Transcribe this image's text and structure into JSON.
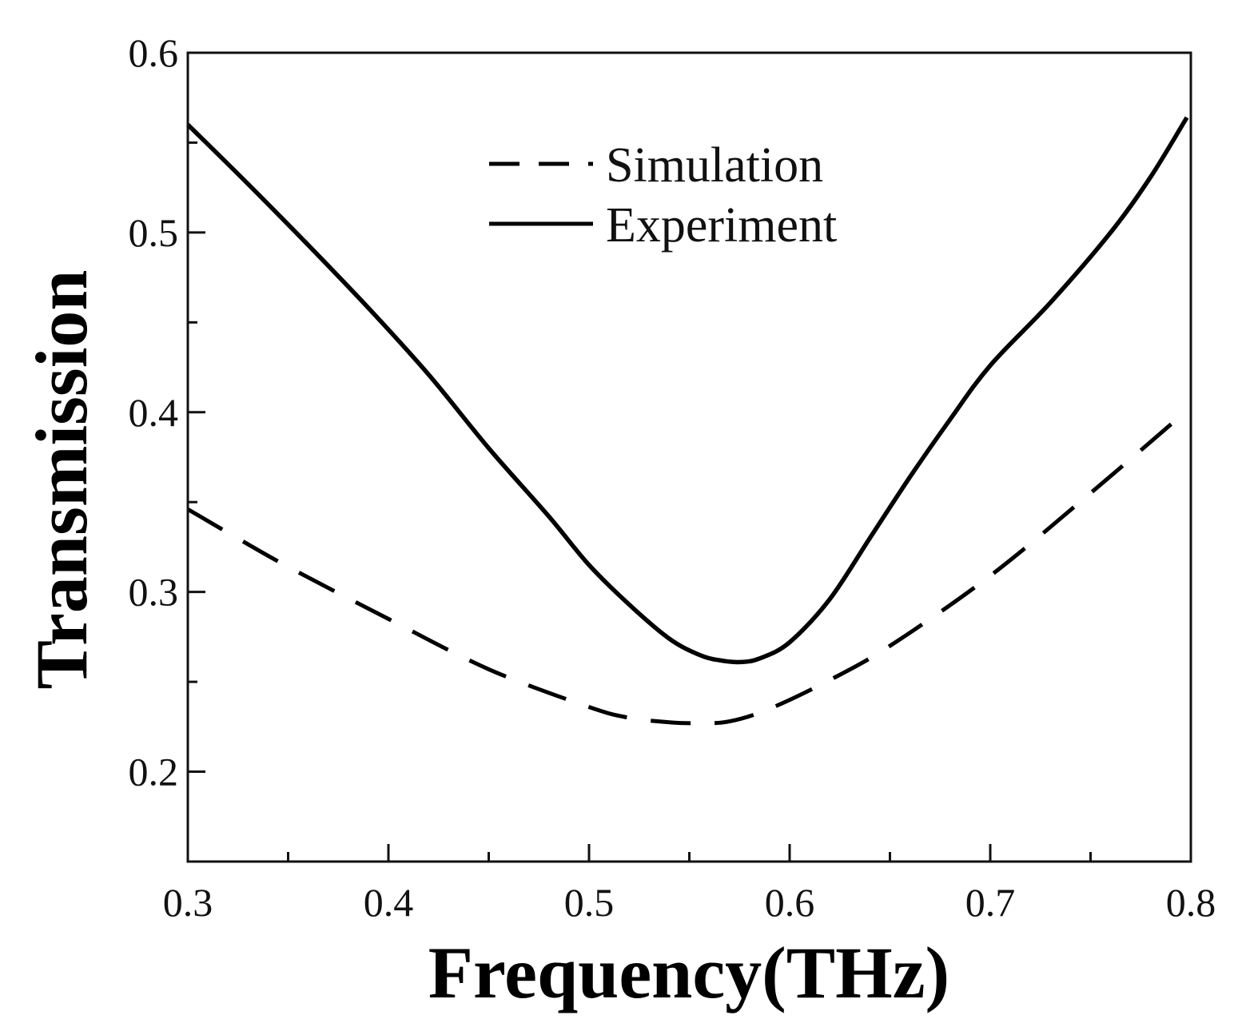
{
  "chart_data": {
    "type": "line",
    "title": "",
    "xlabel": "Frequency(THz)",
    "ylabel": "Transmission",
    "xlim": [
      0.3,
      0.8
    ],
    "ylim": [
      0.15,
      0.6
    ],
    "xticks": [
      {
        "value": 0.3,
        "label": "0.3"
      },
      {
        "value": 0.4,
        "label": "0.4"
      },
      {
        "value": 0.5,
        "label": "0.5"
      },
      {
        "value": 0.6,
        "label": "0.6"
      },
      {
        "value": 0.7,
        "label": "0.7"
      },
      {
        "value": 0.8,
        "label": "0.8"
      }
    ],
    "xminor": [
      0.35,
      0.45,
      0.55,
      0.65,
      0.75
    ],
    "yticks": [
      {
        "value": 0.2,
        "label": "0.2"
      },
      {
        "value": 0.3,
        "label": "0.3"
      },
      {
        "value": 0.4,
        "label": "0.4"
      },
      {
        "value": 0.5,
        "label": "0.5"
      },
      {
        "value": 0.6,
        "label": "0.6"
      }
    ],
    "yminor": [
      0.25,
      0.35,
      0.45,
      0.55
    ],
    "grid": false,
    "legend_position": "top-center",
    "series": [
      {
        "name": "Simulation",
        "style": "dashed",
        "color": "#000000",
        "x": [
          0.3,
          0.32,
          0.35,
          0.4,
          0.45,
          0.5,
          0.52,
          0.54,
          0.555,
          0.57,
          0.59,
          0.62,
          0.65,
          0.7,
          0.75,
          0.795
        ],
        "y": [
          0.346,
          0.333,
          0.314,
          0.285,
          0.257,
          0.236,
          0.23,
          0.2275,
          0.227,
          0.228,
          0.235,
          0.251,
          0.27,
          0.309,
          0.355,
          0.398
        ]
      },
      {
        "name": "Experiment",
        "style": "solid",
        "color": "#000000",
        "x": [
          0.3,
          0.33,
          0.36,
          0.39,
          0.42,
          0.45,
          0.48,
          0.5,
          0.52,
          0.54,
          0.555,
          0.565,
          0.575,
          0.585,
          0.6,
          0.62,
          0.64,
          0.66,
          0.68,
          0.7,
          0.73,
          0.76,
          0.78,
          0.798
        ],
        "y": [
          0.56,
          0.527,
          0.493,
          0.458,
          0.421,
          0.38,
          0.342,
          0.315,
          0.293,
          0.274,
          0.265,
          0.262,
          0.261,
          0.263,
          0.272,
          0.296,
          0.33,
          0.364,
          0.396,
          0.426,
          0.461,
          0.5,
          0.531,
          0.564
        ]
      }
    ]
  }
}
